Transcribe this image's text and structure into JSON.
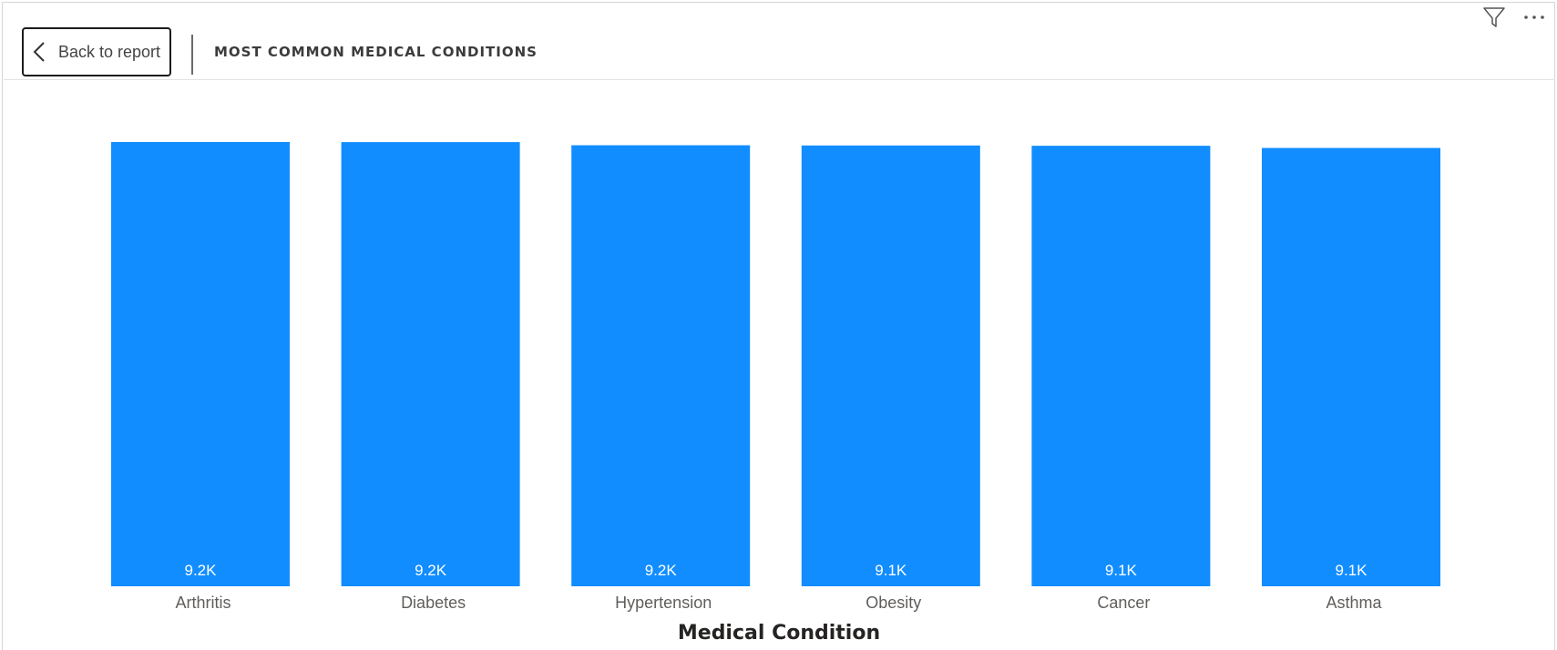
{
  "header": {
    "back_label": "Back to report",
    "title": "MOST COMMON MEDICAL CONDITIONS"
  },
  "icons": {
    "back": "chevron-left-icon",
    "filter": "filter-icon",
    "more": "more-options-icon"
  },
  "colors": {
    "bar": "#118DFF",
    "data_label": "#ffffff",
    "category_label": "#605E5C",
    "axis_title": "#252423"
  },
  "chart_data": {
    "type": "bar",
    "categories": [
      "Arthritis",
      "Diabetes",
      "Hypertension",
      "Obesity",
      "Cancer",
      "Asthma"
    ],
    "values": [
      9218,
      9216,
      9151,
      9146,
      9140,
      9095
    ],
    "data_labels": [
      "9.2K",
      "9.2K",
      "9.2K",
      "9.1K",
      "9.1K",
      "9.1K"
    ],
    "xlabel": "Medical Condition",
    "ylabel": "",
    "ylim": [
      0,
      9218
    ],
    "grid": false,
    "legend": "none"
  }
}
